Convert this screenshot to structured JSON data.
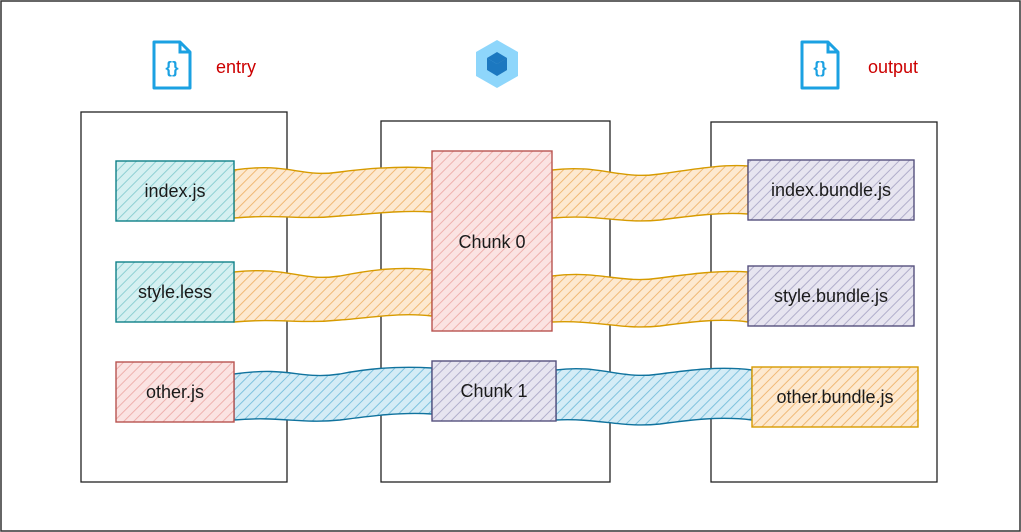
{
  "header": {
    "entry_label": "entry",
    "output_label": "output",
    "entry_icon": "json-file-icon",
    "output_icon": "json-file-icon",
    "center_icon": "webpack-logo",
    "label_color": "#cc0000",
    "icon_color": "#1ba1e2"
  },
  "entry": {
    "files": [
      {
        "name": "index.js",
        "color": "#0e8088",
        "fill": "#b0e3e6"
      },
      {
        "name": "style.less",
        "color": "#0e8088",
        "fill": "#b0e3e6"
      },
      {
        "name": "other.js",
        "color": "#b85450",
        "fill": "#f8cecc"
      }
    ]
  },
  "chunks": [
    {
      "name": "Chunk 0",
      "color": "#b85450",
      "fill": "#f8cecc"
    },
    {
      "name": "Chunk 1",
      "color": "#56517e",
      "fill": "#d0cee2"
    }
  ],
  "output": {
    "files": [
      {
        "name": "index.bundle.js",
        "color": "#56517e",
        "fill": "#d0cee2"
      },
      {
        "name": "style.bundle.js",
        "color": "#56517e",
        "fill": "#d0cee2"
      },
      {
        "name": "other.bundle.js",
        "color": "#d79b00",
        "fill": "#fad7ac"
      }
    ]
  },
  "connectors": {
    "orange": {
      "stroke": "#d79b00",
      "fill": "#fad7ac"
    },
    "blue": {
      "stroke": "#10739e",
      "fill": "#b1ddf0"
    }
  }
}
